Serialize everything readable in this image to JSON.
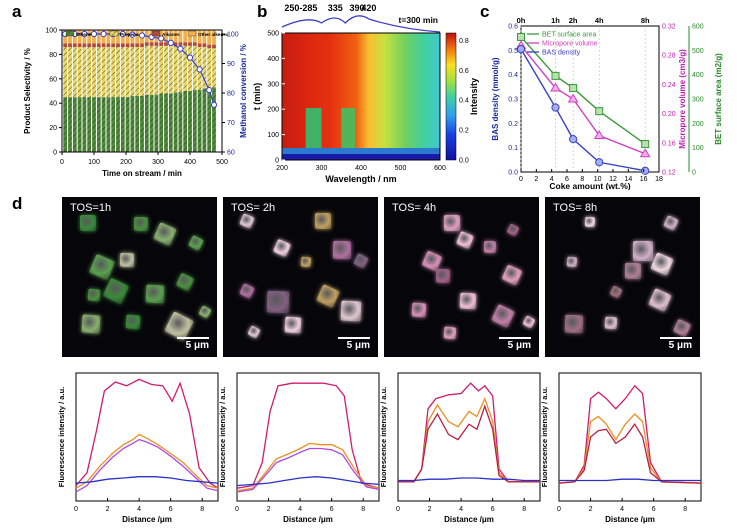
{
  "panels": {
    "a": "a",
    "b": "b",
    "c": "c",
    "d": "d"
  },
  "chart_data": [
    {
      "type": "bar",
      "panel": "a",
      "xlabel": "Time on stream / min",
      "ylabel": "Product Selectivity / %",
      "y2label": "Methanol conversion / %",
      "xlim": [
        0,
        500
      ],
      "ylim": [
        0,
        100
      ],
      "y2lim": [
        0,
        100
      ],
      "xticks": [
        0,
        100,
        200,
        300,
        400,
        500
      ],
      "yticks": [
        0,
        20,
        40,
        60,
        80,
        100
      ],
      "y2ticks": [
        60,
        70,
        80,
        90,
        100
      ],
      "series": [
        {
          "name": "Ethene",
          "color": "#4f8a3a"
        },
        {
          "name": "Propene",
          "color": "#e8d86a"
        },
        {
          "name": "Alkanes",
          "color": "#b04a3a"
        },
        {
          "name": "Other alkenes",
          "color": "#f0b050"
        }
      ],
      "stack_x": [
        10,
        25,
        40,
        55,
        70,
        85,
        100,
        115,
        130,
        145,
        160,
        175,
        190,
        205,
        220,
        235,
        250,
        265,
        280,
        295,
        310,
        325,
        340,
        355,
        370,
        385,
        400,
        415,
        430,
        445,
        460,
        475
      ],
      "ethene": [
        45,
        45,
        45,
        45,
        45,
        45,
        45,
        45,
        45,
        45,
        45,
        45,
        45,
        45,
        46,
        46,
        46,
        47,
        47,
        47,
        48,
        48,
        48,
        49,
        49,
        50,
        50,
        51,
        51,
        52,
        52,
        53
      ],
      "propene": [
        41,
        41,
        41,
        41,
        41,
        41,
        41,
        41,
        41,
        41,
        41,
        41,
        41,
        41,
        40,
        40,
        40,
        40,
        40,
        40,
        39,
        39,
        39,
        38,
        38,
        37,
        37,
        36,
        35,
        34,
        33,
        32
      ],
      "alkanes": [
        3,
        3,
        3,
        3,
        3,
        3,
        3,
        3,
        3,
        3,
        3,
        3,
        3,
        3,
        3,
        3,
        3,
        3,
        3,
        3,
        3,
        3,
        3,
        3,
        3,
        3,
        3,
        3,
        3,
        3,
        3,
        3
      ],
      "conversion_x": [
        10,
        40,
        70,
        100,
        130,
        160,
        190,
        220,
        250,
        280,
        310,
        340,
        370,
        400,
        430,
        460,
        475
      ],
      "conversion": [
        100,
        100,
        100,
        100,
        100,
        100,
        100,
        99.8,
        99.5,
        99,
        98.5,
        97,
        95,
        92,
        88,
        81,
        76
      ]
    },
    {
      "type": "heatmap",
      "panel": "b",
      "xlabel": "Wavelength / nm",
      "ylabel": "t (min)",
      "colorbar_label": "Intensity",
      "xlim": [
        200,
        600
      ],
      "ylim": [
        0,
        500
      ],
      "xticks": [
        200,
        300,
        400,
        500,
        600
      ],
      "yticks": [
        0,
        100,
        200,
        300,
        400,
        500
      ],
      "colorbar_ticks": [
        0.0,
        0.2,
        0.4,
        0.6,
        0.8
      ],
      "band_labels": [
        "250-285",
        "335",
        "390",
        "420"
      ],
      "band_positions": [
        268,
        335,
        390,
        420
      ],
      "annotation": "t=300 min"
    },
    {
      "type": "line",
      "panel": "c",
      "xlabel": "Coke amount (wt.%)",
      "ylabel": "BAS density (mmol/g)",
      "y2label": "Micropore volume (cm3/g)",
      "y3label": "BET surface area (m2/g)",
      "xlim": [
        0,
        18
      ],
      "ylim": [
        0.0,
        0.6
      ],
      "y2lim": [
        0.12,
        0.32
      ],
      "y3lim": [
        0,
        600
      ],
      "xticks": [
        0,
        2,
        4,
        6,
        8,
        10,
        12,
        14,
        16,
        18
      ],
      "yticks": [
        0.0,
        0.1,
        0.2,
        0.3,
        0.4,
        0.5,
        0.6
      ],
      "y2ticks": [
        0.12,
        0.16,
        0.2,
        0.24,
        0.28,
        0.32
      ],
      "y3ticks": [
        0,
        100,
        200,
        300,
        400,
        500,
        600
      ],
      "top_labels": [
        "0h",
        "1h",
        "2h",
        "4h",
        "8h"
      ],
      "x": [
        0,
        4.5,
        6.8,
        10.2,
        16.2
      ],
      "series": [
        {
          "name": "BET surface area",
          "axis": "y3",
          "color": "#3a9a3a",
          "values": [
            555,
            395,
            345,
            250,
            115
          ]
        },
        {
          "name": "Micropore volume",
          "axis": "y2",
          "color": "#d040c0",
          "values": [
            0.293,
            0.235,
            0.22,
            0.17,
            0.145
          ]
        },
        {
          "name": "BAS density",
          "axis": "y",
          "color": "#3a40c8",
          "values": [
            0.505,
            0.265,
            0.135,
            0.04,
            0.005
          ]
        }
      ]
    },
    {
      "type": "line",
      "panel": "d-profiles",
      "xlabel": "Distance /μm",
      "ylabel": "Fluorescence intensity / a.u.",
      "xticks": [
        0,
        2,
        4,
        6,
        8
      ],
      "plots": [
        {
          "xmax": 9,
          "series": [
            {
              "color": "#d01a70",
              "x": [
                0,
                0.7,
                1.3,
                1.8,
                2.5,
                3.2,
                4,
                4.8,
                5.5,
                6.1,
                6.6,
                7.2,
                7.8,
                8.5,
                9
              ],
              "y": [
                0.12,
                0.22,
                0.55,
                0.86,
                0.93,
                0.9,
                0.95,
                0.91,
                0.9,
                0.78,
                0.92,
                0.68,
                0.26,
                0.14,
                0.1
              ]
            },
            {
              "color": "#e89020",
              "x": [
                0,
                0.7,
                1.5,
                2.3,
                3,
                3.6,
                4,
                4.5,
                5.2,
                6,
                6.8,
                7.6,
                8.3,
                9
              ],
              "y": [
                0.1,
                0.15,
                0.27,
                0.37,
                0.44,
                0.48,
                0.52,
                0.49,
                0.44,
                0.37,
                0.3,
                0.2,
                0.12,
                0.1
              ]
            },
            {
              "color": "#b04ae0",
              "x": [
                0,
                0.7,
                1.5,
                2.3,
                3,
                3.6,
                4,
                4.5,
                5.2,
                6,
                6.8,
                7.6,
                8.3,
                9
              ],
              "y": [
                0.07,
                0.12,
                0.24,
                0.34,
                0.41,
                0.45,
                0.48,
                0.46,
                0.42,
                0.35,
                0.27,
                0.18,
                0.1,
                0.08
              ]
            },
            {
              "color": "#2a30c8",
              "x": [
                0,
                1,
                2,
                3,
                4,
                5,
                6,
                7,
                8,
                9
              ],
              "y": [
                0.14,
                0.15,
                0.17,
                0.18,
                0.19,
                0.19,
                0.18,
                0.16,
                0.15,
                0.14
              ]
            }
          ]
        },
        {
          "xmax": 9,
          "series": [
            {
              "color": "#d01a70",
              "x": [
                0,
                1,
                1.6,
                2.1,
                2.6,
                3.5,
                4.5,
                5.5,
                6.3,
                6.8,
                7.3,
                7.9,
                9
              ],
              "y": [
                0.1,
                0.12,
                0.3,
                0.7,
                0.9,
                0.92,
                0.92,
                0.92,
                0.9,
                0.82,
                0.4,
                0.14,
                0.1
              ]
            },
            {
              "color": "#e89020",
              "x": [
                0,
                1,
                1.8,
                2.5,
                3.3,
                4,
                4.6,
                5.3,
                6,
                6.7,
                7.4,
                8.2,
                9
              ],
              "y": [
                0.08,
                0.1,
                0.22,
                0.33,
                0.37,
                0.41,
                0.45,
                0.44,
                0.44,
                0.4,
                0.26,
                0.12,
                0.1
              ]
            },
            {
              "color": "#b04ae0",
              "x": [
                0,
                1,
                1.8,
                2.5,
                3.3,
                4,
                4.6,
                5.3,
                6,
                6.7,
                7.4,
                8.2,
                9
              ],
              "y": [
                0.07,
                0.09,
                0.2,
                0.3,
                0.34,
                0.38,
                0.41,
                0.41,
                0.4,
                0.36,
                0.23,
                0.11,
                0.09
              ]
            },
            {
              "color": "#2a30c8",
              "x": [
                0,
                1,
                2,
                3,
                4,
                5,
                6,
                7,
                8,
                9
              ],
              "y": [
                0.12,
                0.13,
                0.14,
                0.16,
                0.18,
                0.19,
                0.18,
                0.16,
                0.14,
                0.13
              ]
            }
          ]
        },
        {
          "xmax": 9,
          "series": [
            {
              "color": "#d01a70",
              "x": [
                0,
                1,
                1.5,
                1.9,
                2.4,
                3.2,
                4,
                4.6,
                5.1,
                5.5,
                6,
                6.4,
                7,
                9
              ],
              "y": [
                0.15,
                0.15,
                0.25,
                0.72,
                0.8,
                0.83,
                0.84,
                0.92,
                0.86,
                0.9,
                0.82,
                0.25,
                0.15,
                0.15
              ]
            },
            {
              "color": "#e89020",
              "x": [
                0,
                1,
                1.5,
                1.9,
                2.5,
                3.2,
                3.8,
                4.5,
                5,
                5.5,
                6,
                6.4,
                7,
                9
              ],
              "y": [
                0.15,
                0.15,
                0.25,
                0.62,
                0.75,
                0.62,
                0.58,
                0.7,
                0.66,
                0.8,
                0.62,
                0.22,
                0.15,
                0.15
              ]
            },
            {
              "color": "#b82040",
              "x": [
                0,
                1,
                1.5,
                1.9,
                2.5,
                3.2,
                3.8,
                4.5,
                5,
                5.5,
                6,
                6.4,
                7,
                9
              ],
              "y": [
                0.15,
                0.15,
                0.25,
                0.56,
                0.68,
                0.52,
                0.48,
                0.6,
                0.56,
                0.74,
                0.56,
                0.2,
                0.15,
                0.15
              ]
            },
            {
              "color": "#2a30c8",
              "x": [
                0,
                1,
                2,
                3,
                4,
                5,
                6,
                7,
                8,
                9
              ],
              "y": [
                0.16,
                0.16,
                0.17,
                0.17,
                0.18,
                0.18,
                0.17,
                0.17,
                0.16,
                0.16
              ]
            }
          ]
        },
        {
          "xmax": 9,
          "series": [
            {
              "color": "#d01a70",
              "x": [
                0,
                1,
                1.6,
                2,
                2.5,
                3,
                3.6,
                4.2,
                4.8,
                5.3,
                5.8,
                6.5,
                9
              ],
              "y": [
                0.14,
                0.15,
                0.28,
                0.8,
                0.85,
                0.8,
                0.72,
                0.8,
                0.9,
                0.84,
                0.3,
                0.15,
                0.14
              ]
            },
            {
              "color": "#e89020",
              "x": [
                0,
                1,
                1.6,
                2,
                2.5,
                3,
                3.6,
                4.2,
                4.8,
                5.3,
                5.8,
                6.5,
                9
              ],
              "y": [
                0.14,
                0.15,
                0.26,
                0.62,
                0.66,
                0.6,
                0.48,
                0.6,
                0.68,
                0.62,
                0.26,
                0.15,
                0.14
              ]
            },
            {
              "color": "#b82040",
              "x": [
                0,
                1,
                1.6,
                2,
                2.5,
                3,
                3.6,
                4.2,
                4.8,
                5.3,
                5.8,
                6.5,
                9
              ],
              "y": [
                0.14,
                0.15,
                0.24,
                0.5,
                0.55,
                0.56,
                0.45,
                0.5,
                0.6,
                0.5,
                0.22,
                0.15,
                0.14
              ]
            },
            {
              "color": "#2a30c8",
              "x": [
                0,
                1,
                2,
                3,
                4,
                5,
                6,
                7,
                8,
                9
              ],
              "y": [
                0.16,
                0.16,
                0.16,
                0.16,
                0.17,
                0.17,
                0.16,
                0.16,
                0.16,
                0.16
              ]
            }
          ]
        }
      ]
    }
  ],
  "micrographs": [
    {
      "label": "TOS=1h",
      "scale": "5 μm"
    },
    {
      "label": "TOS= 2h",
      "scale": "5 μm"
    },
    {
      "label": "TOS= 4h",
      "scale": "5 μm"
    },
    {
      "label": "TOS= 8h",
      "scale": "5 μm"
    }
  ]
}
